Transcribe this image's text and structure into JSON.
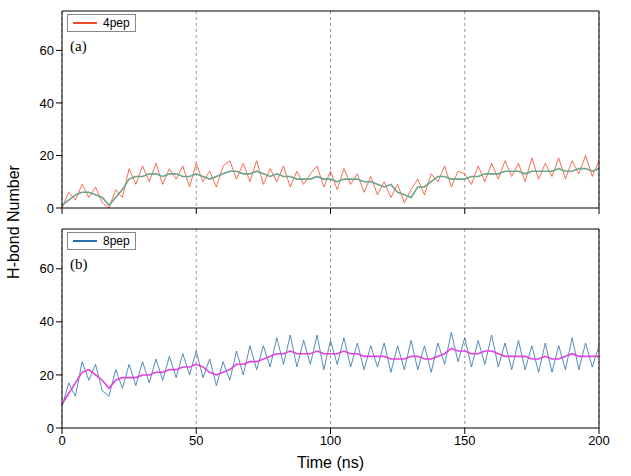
{
  "chart_data": [
    {
      "type": "line",
      "title": "(a)",
      "ylabel": "H-bond Number",
      "tick_labels": "y",
      "grid": true,
      "legend": "upper left",
      "xlim": [
        0,
        200
      ],
      "xticks": [
        0,
        50,
        100,
        150,
        200
      ],
      "ylim": [
        0,
        75
      ],
      "yticks": [
        0,
        20,
        40,
        60
      ],
      "x": [
        0,
        2.5,
        5,
        7.5,
        10,
        12.5,
        15,
        17.5,
        20,
        22.5,
        25,
        27.5,
        30,
        32.5,
        35,
        37.5,
        40,
        42.5,
        45,
        47.5,
        50,
        52.5,
        55,
        57.5,
        60,
        62.5,
        65,
        67.5,
        70,
        72.5,
        75,
        77.5,
        80,
        82.5,
        85,
        87.5,
        90,
        92.5,
        95,
        97.5,
        100,
        102.5,
        105,
        107.5,
        110,
        112.5,
        115,
        117.5,
        120,
        122.5,
        125,
        127.5,
        130,
        132.5,
        135,
        137.5,
        140,
        142.5,
        145,
        147.5,
        150,
        152.5,
        155,
        157.5,
        160,
        162.5,
        165,
        167.5,
        170,
        172.5,
        175,
        177.5,
        180,
        182.5,
        185,
        187.5,
        190,
        192.5,
        195,
        197.5,
        200
      ],
      "series": [
        {
          "name": "4pep",
          "color": "#f04a2a",
          "values": [
            0,
            6,
            3,
            9,
            4,
            8,
            2,
            0,
            7,
            4,
            15,
            9,
            16,
            10,
            17,
            9,
            15,
            11,
            16,
            8,
            17,
            10,
            14,
            8,
            16,
            18,
            11,
            17,
            10,
            18,
            9,
            15,
            10,
            16,
            8,
            14,
            9,
            13,
            16,
            8,
            14,
            7,
            15,
            9,
            13,
            6,
            12,
            5,
            10,
            4,
            9,
            2,
            7,
            11,
            5,
            13,
            10,
            16,
            8,
            14,
            13,
            9,
            16,
            10,
            17,
            11,
            18,
            12,
            17,
            10,
            19,
            11,
            17,
            12,
            19,
            11,
            18,
            13,
            20,
            12,
            18
          ]
        },
        {
          "color": "#6aa58a",
          "values": [
            1,
            3,
            5,
            6,
            6,
            5,
            4,
            1,
            4,
            7,
            11,
            12,
            12,
            13,
            13,
            12,
            13,
            13,
            12,
            12,
            13,
            12,
            11,
            12,
            13,
            14,
            14,
            13,
            13,
            14,
            13,
            12,
            13,
            12,
            12,
            11,
            11,
            11,
            12,
            11,
            11,
            10,
            11,
            11,
            11,
            10,
            10,
            9,
            8,
            9,
            6,
            5,
            4,
            8,
            8,
            10,
            12,
            12,
            11,
            11,
            11,
            12,
            12,
            13,
            13,
            13,
            14,
            14,
            14,
            13,
            14,
            14,
            14,
            14,
            15,
            14,
            14,
            15,
            15,
            14,
            15
          ]
        }
      ]
    },
    {
      "type": "line",
      "title": "(b)",
      "xlabel": "Time (ns)",
      "grid": true,
      "legend": "upper left",
      "xlim": [
        0,
        200
      ],
      "xticks": [
        0,
        50,
        100,
        150,
        200
      ],
      "ylim": [
        0,
        75
      ],
      "yticks": [
        0,
        20,
        40,
        60
      ],
      "x": [
        0,
        2.5,
        5,
        7.5,
        10,
        12.5,
        15,
        17.5,
        20,
        22.5,
        25,
        27.5,
        30,
        32.5,
        35,
        37.5,
        40,
        42.5,
        45,
        47.5,
        50,
        52.5,
        55,
        57.5,
        60,
        62.5,
        65,
        67.5,
        70,
        72.5,
        75,
        77.5,
        80,
        82.5,
        85,
        87.5,
        90,
        92.5,
        95,
        97.5,
        100,
        102.5,
        105,
        107.5,
        110,
        112.5,
        115,
        117.5,
        120,
        122.5,
        125,
        127.5,
        130,
        132.5,
        135,
        137.5,
        140,
        142.5,
        145,
        147.5,
        150,
        152.5,
        155,
        157.5,
        160,
        162.5,
        165,
        167.5,
        170,
        172.5,
        175,
        177.5,
        180,
        182.5,
        185,
        187.5,
        190,
        192.5,
        195,
        197.5,
        200
      ],
      "series": [
        {
          "name": "8pep",
          "color": "#2a6fa8",
          "values": [
            8,
            17,
            12,
            25,
            18,
            24,
            14,
            12,
            22,
            15,
            24,
            16,
            25,
            17,
            26,
            18,
            27,
            19,
            28,
            20,
            29,
            19,
            26,
            16,
            25,
            18,
            29,
            20,
            31,
            22,
            31,
            23,
            34,
            24,
            35,
            23,
            33,
            24,
            35,
            22,
            33,
            24,
            34,
            23,
            32,
            22,
            31,
            23,
            32,
            21,
            31,
            22,
            33,
            22,
            31,
            21,
            32,
            24,
            36,
            25,
            34,
            23,
            33,
            24,
            35,
            23,
            32,
            22,
            33,
            22,
            31,
            21,
            32,
            21,
            31,
            22,
            34,
            22,
            32,
            23,
            31
          ]
        },
        {
          "color": "#e040e0",
          "values": [
            9,
            13,
            17,
            21,
            22,
            20,
            18,
            15,
            18,
            19,
            19,
            19,
            20,
            20,
            21,
            21,
            22,
            22,
            23,
            23,
            24,
            23,
            21,
            20,
            21,
            22,
            24,
            24,
            25,
            25,
            26,
            27,
            28,
            28,
            29,
            28,
            28,
            28,
            29,
            28,
            28,
            28,
            29,
            28,
            28,
            27,
            27,
            27,
            27,
            26,
            26,
            26,
            27,
            27,
            26,
            26,
            27,
            28,
            30,
            29,
            29,
            28,
            28,
            29,
            29,
            28,
            27,
            27,
            27,
            27,
            26,
            26,
            27,
            26,
            26,
            27,
            28,
            27,
            27,
            27,
            27
          ]
        }
      ]
    }
  ]
}
